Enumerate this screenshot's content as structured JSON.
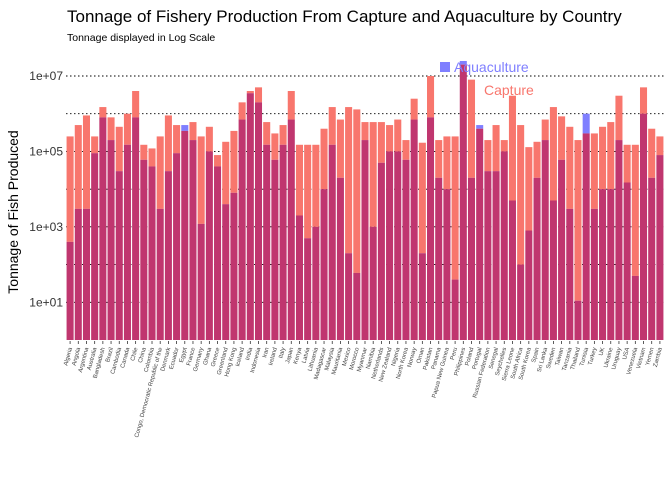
{
  "chart_data": {
    "type": "bar",
    "title": "Tonnage of Fishery Production From Capture and Aquaculture by Country",
    "subtitle": "Tonnage displayed in Log Scale",
    "ylabel": "Tonnage of Fish Produced",
    "xlabel": "",
    "yscale": "log10",
    "ylim": [
      1,
      30000000
    ],
    "yticks": [
      10,
      1000,
      100000,
      10000000
    ],
    "ytick_labels": [
      "1e+01",
      "1e+03",
      "1e+05",
      "1e+07"
    ],
    "grid": "horizontal dotted",
    "colors": {
      "capture": "#F8766D",
      "aquaculture": "#7F7FFF",
      "overlap": "#C0366F"
    },
    "categories": [
      "Algeria",
      "Angola",
      "Argentina",
      "Australia",
      "Bangladesh",
      "Brazil",
      "Cambodia",
      "Canada",
      "Chile",
      "China",
      "Colombia",
      "Congo, Democratic Republic of the",
      "Denmark",
      "Ecuador",
      "Egypt",
      "France",
      "Germany",
      "Ghana",
      "Greece",
      "Greenland",
      "Hong Kong",
      "Iceland",
      "India",
      "Indonesia",
      "Iran",
      "Ireland",
      "Italy",
      "Japan",
      "Kenya",
      "Latvia",
      "Lithuania",
      "Madagascar",
      "Malaysia",
      "Mauritania",
      "Mexico",
      "Morocco",
      "Myanmar",
      "Namibia",
      "Netherlands",
      "New Zealand",
      "Nigeria",
      "North Korea",
      "Norway",
      "Oman",
      "Pakistan",
      "Panama",
      "Papua New Guinea",
      "Peru",
      "Philippines",
      "Poland",
      "Portugal",
      "Russian Federation",
      "Senegal",
      "Seychelles",
      "Sierra Leone",
      "South Africa",
      "South Korea",
      "Spain",
      "Sri Lanka",
      "Sweden",
      "Taiwan",
      "Tanzania",
      "Thailand",
      "Tunisia",
      "Turkey",
      "UK",
      "Ukraine",
      "Uruguay",
      "USA",
      "Venezuela",
      "Vietnam",
      "Yemen",
      "Zambia"
    ],
    "series": [
      {
        "name": "Capture",
        "values": [
          250000,
          500000,
          900000,
          250000,
          1500000,
          800000,
          450000,
          1000000,
          4000000,
          150000,
          120000,
          250000,
          900000,
          500000,
          350000,
          600000,
          250000,
          450000,
          80000,
          180000,
          350000,
          2000000,
          4000000,
          5000000,
          600000,
          300000,
          500000,
          4000000,
          150000,
          150000,
          150000,
          400000,
          1500000,
          700000,
          1500000,
          1300000,
          600000,
          600000,
          600000,
          500000,
          700000,
          200000,
          2500000,
          170000,
          10000000,
          200000,
          250000,
          250000,
          20000000,
          8000000,
          400000,
          200000,
          500000,
          200000,
          3000000,
          500000,
          130000,
          180000,
          700000,
          1500000,
          850000,
          450000,
          200000,
          300000,
          300000,
          450000,
          600000,
          3000000,
          150000,
          150000,
          5000000,
          400000,
          250000
        ]
      },
      {
        "name": "Aquaculture",
        "values": [
          400,
          3000,
          3000,
          90000,
          800000,
          200000,
          30000,
          150000,
          800000,
          60000,
          40000,
          3000,
          30000,
          90000,
          500000,
          200000,
          1200,
          100000,
          40000,
          4000,
          8000,
          700000,
          3500000,
          2000000,
          150000,
          60000,
          150000,
          700000,
          2000,
          500,
          1000,
          10000,
          150000,
          20000,
          200,
          60,
          200000,
          1000,
          50000,
          100000,
          100000,
          60000,
          700000,
          200,
          800000,
          20000,
          10000,
          40,
          25000000,
          20000,
          500000,
          30000,
          30000,
          100000,
          5000,
          100,
          800,
          20000,
          200000,
          5000,
          60000,
          3000,
          11,
          1000000,
          3000,
          10000,
          10000,
          200000,
          15000,
          50,
          1000000,
          20000,
          80000
        ]
      }
    ],
    "annotations": [
      {
        "text": "Aquaculture",
        "color": "#7F7FFF"
      },
      {
        "text": "Capture",
        "color": "#F8766D"
      }
    ]
  }
}
